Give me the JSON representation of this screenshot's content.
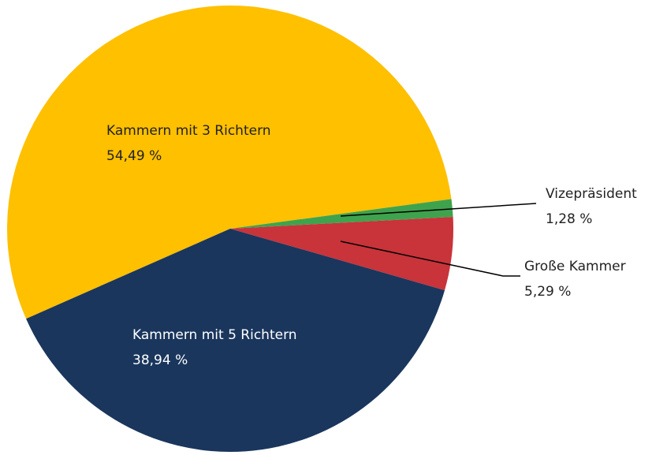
{
  "chart_data": {
    "type": "pie",
    "categories": [
      "Kammern mit 3 Richtern",
      "Vizepräsident",
      "Große Kammer",
      "Kammern mit 5 Richtern"
    ],
    "values": [
      54.49,
      1.28,
      5.29,
      38.94
    ],
    "value_labels": [
      "54,49 %",
      "1,28 %",
      "5,29 %",
      "38,94 %"
    ],
    "colors": [
      "#FFC000",
      "#3FA34D",
      "#C9333A",
      "#1A365D"
    ]
  }
}
